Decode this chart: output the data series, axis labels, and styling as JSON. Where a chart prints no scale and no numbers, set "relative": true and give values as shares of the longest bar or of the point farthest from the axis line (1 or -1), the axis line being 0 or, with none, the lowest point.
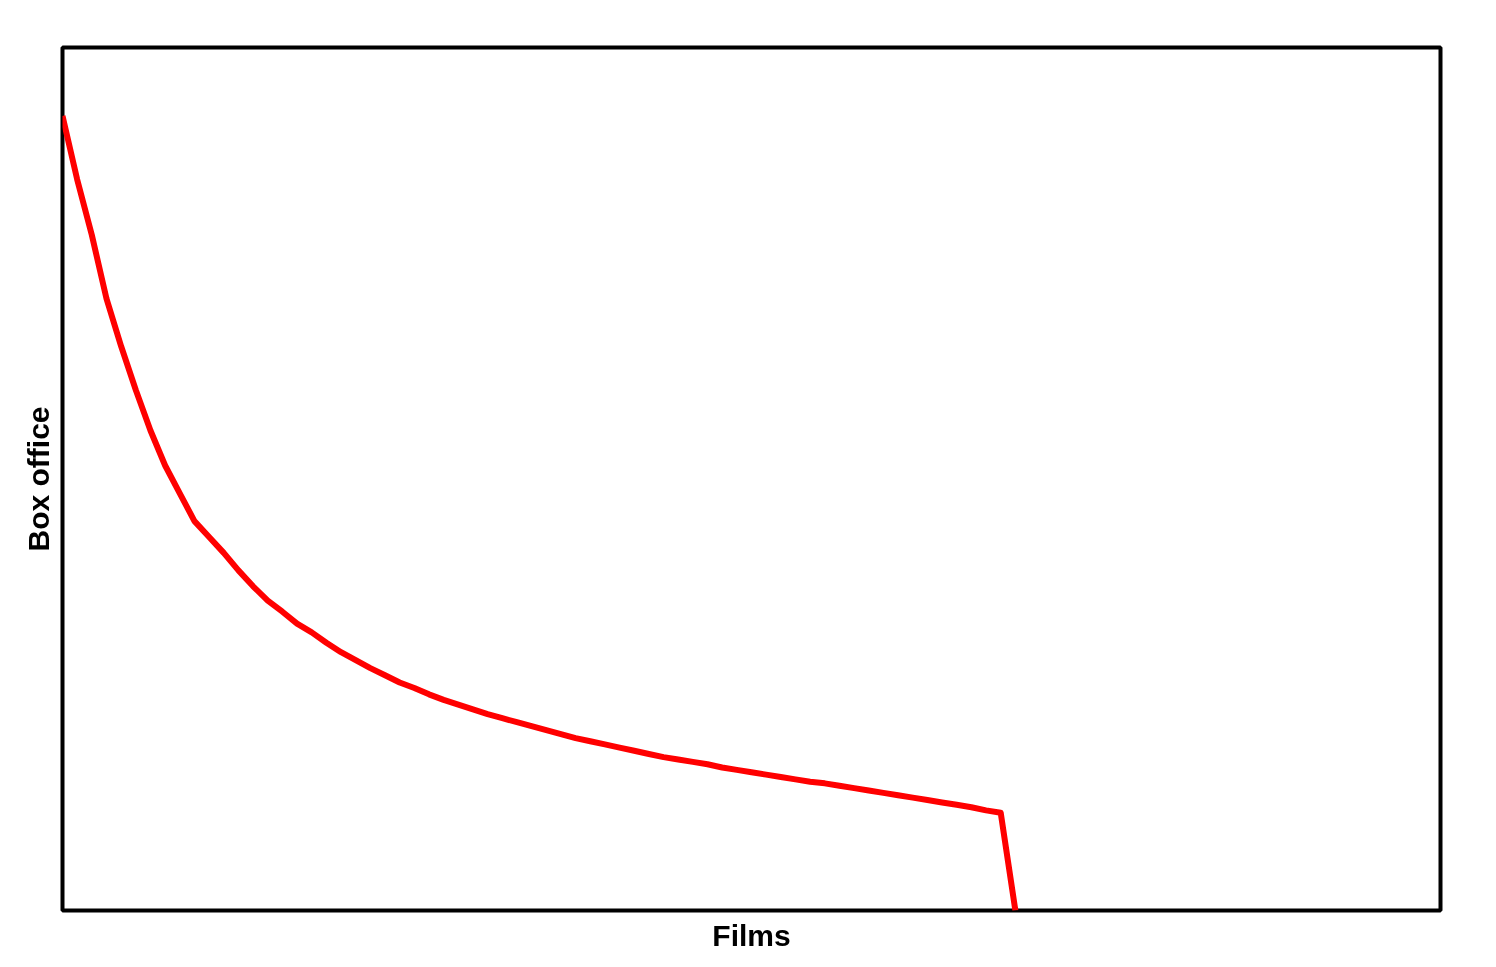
{
  "chart_data": {
    "type": "line",
    "xlabel": "Films",
    "ylabel": "Box office",
    "relative": true,
    "categories": [
      null,
      null,
      null,
      null,
      null,
      null,
      null,
      null,
      null,
      null,
      null,
      null,
      null,
      null,
      null,
      null,
      null,
      null,
      null,
      null,
      null,
      null,
      null,
      null,
      null,
      null,
      null,
      null,
      null,
      null,
      null,
      null,
      null,
      null,
      null,
      null,
      null,
      null,
      null,
      null,
      null,
      null,
      null,
      null,
      null,
      null,
      null,
      null,
      null,
      null,
      null,
      null,
      null,
      null,
      null,
      null,
      null,
      null,
      null,
      null,
      null,
      null,
      null,
      null,
      null,
      null,
      null,
      null,
      null,
      null,
      null,
      null,
      null,
      null,
      null,
      null,
      null,
      null,
      null,
      null,
      null,
      null,
      null,
      null,
      null,
      null,
      null,
      null,
      null,
      null,
      null,
      null,
      null,
      null,
      null
    ],
    "series": [
      {
        "color": "#ff0000",
        "values": [
          1.0,
          0.92,
          0.85,
          0.77,
          0.71,
          0.655,
          0.604,
          0.56,
          0.525,
          0.49,
          0.47,
          0.45,
          0.428,
          0.408,
          0.39,
          0.376,
          0.361,
          0.35,
          0.337,
          0.325,
          0.315,
          0.305,
          0.296,
          0.287,
          0.28,
          0.272,
          0.265,
          0.259,
          0.253,
          0.247,
          0.242,
          0.237,
          0.232,
          0.227,
          0.222,
          0.217,
          0.213,
          0.209,
          0.205,
          0.201,
          0.197,
          0.193,
          0.19,
          0.187,
          0.184,
          0.18,
          0.177,
          0.174,
          0.171,
          0.168,
          0.165,
          0.162,
          0.16,
          0.157,
          0.154,
          0.151,
          0.148,
          0.145,
          0.142,
          0.139,
          0.136,
          0.133,
          0.13,
          0.126,
          0.123,
          0,
          null,
          null,
          null,
          null,
          null,
          null,
          null,
          null,
          null,
          null,
          null,
          null,
          null,
          null,
          null,
          null,
          null,
          null,
          null,
          null,
          null,
          null,
          null,
          null,
          null,
          null,
          null,
          null,
          null
        ]
      }
    ]
  }
}
